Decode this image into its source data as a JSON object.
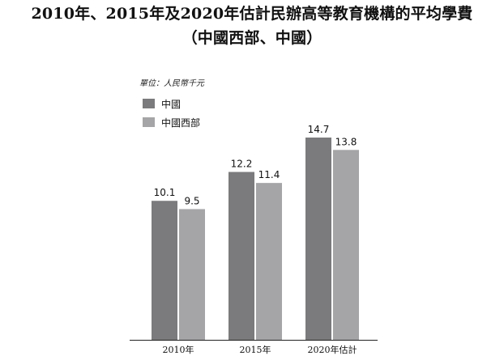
{
  "title_line1": "2010年、2015年及2020年估計民辦高等教育機構的平均學費",
  "title_line2": "（中國西部、中國）",
  "unit_label": "單位：人民幣千元",
  "colors": {
    "china": "#7b7b7d",
    "western_china": "#a5a5a7",
    "axis": "#222222"
  },
  "chart_data": {
    "type": "bar",
    "categories": [
      "2010年",
      "2015年",
      "2020年估計"
    ],
    "series": [
      {
        "name": "中國",
        "values": [
          10.1,
          12.2,
          14.7
        ],
        "labels": [
          "10.1",
          "12.2",
          "14.7"
        ]
      },
      {
        "name": "中國西部",
        "values": [
          9.5,
          11.4,
          13.8
        ],
        "labels": [
          "9.5",
          "11.4",
          "13.8"
        ]
      }
    ],
    "ylim": [
      0,
      14.7
    ],
    "grid": false,
    "legend_position": "top-left"
  }
}
